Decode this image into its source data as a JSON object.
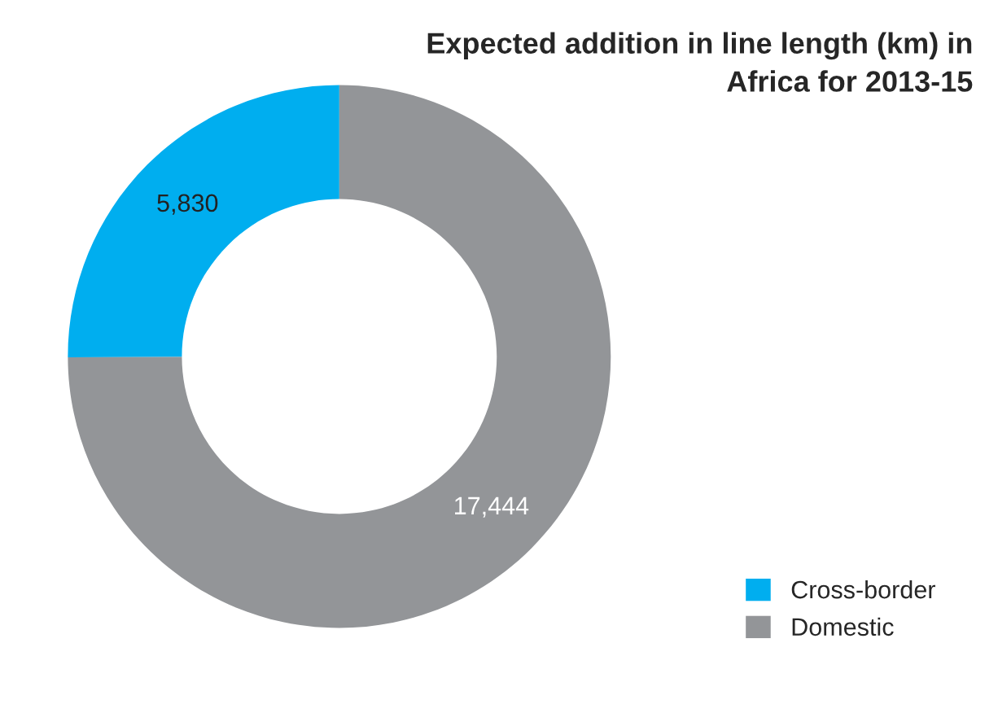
{
  "chart_data": {
    "type": "donut",
    "title": "Expected addition in line length (km) in\nAfrica for 2013-15",
    "categories": [
      "Cross-border",
      "Domestic"
    ],
    "values": [
      5830,
      17444
    ],
    "value_labels": [
      "5,830",
      "17,444"
    ],
    "colors": [
      "#00aeef",
      "#939598"
    ],
    "legend": "bottom right"
  }
}
